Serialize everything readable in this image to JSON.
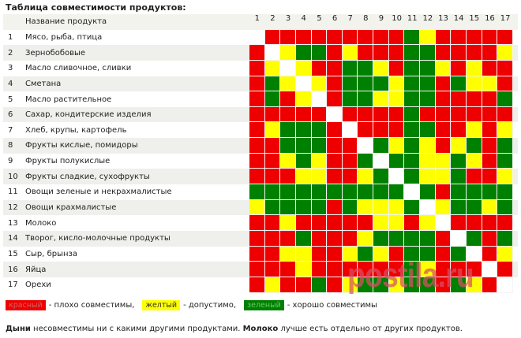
{
  "title": "Таблица совместимости продуктов:",
  "header_label": "Название продукта",
  "colors": {
    "R": "#ee0000",
    "Y": "#ffff00",
    "G": "#008000",
    "W": "#ffffff"
  },
  "products": [
    "Мясо, рыба, птица",
    "Зернобобовые",
    "Масло сливочное, сливки",
    "Сметана",
    "Масло растительное",
    "Сахар, кондитерские изделия",
    "Хлеб, крупы, картофель",
    "Фрукты кислые, помидоры",
    "Фрукты полукислые",
    "Фрукты сладкие, сухофрукты",
    "Овощи зеленые и некрахмалистые",
    "Овощи крахмалистые",
    "Молоко",
    "Творог, кисло-молочные продукты",
    "Сыр, брынза",
    "Яйца",
    "Орехи"
  ],
  "grid": [
    "WRRRRRRRRRGYRRRRR",
    "RWYGGRYRRRGGRRRRY",
    "RYWYRRGGYRGGYRYRR",
    "RGYWYRGGGYGGRGYYR",
    "RGRYWRGGYYGGRRRRG",
    "RRRRRWRRRRGRRRRRR",
    "RYGGGRWRRRGGRRYRY",
    "RRGGGRRWGYGYRYGRG",
    "RRYGYRRGWGGYYGYRG",
    "RRRYYRRYGWGYYGRRY",
    "GGGGGGGGGGWGRGGGG",
    "YGGGGRGYYYGWYGGYG",
    "RRYRRRRRYYRYWRRRR",
    "RRRGRRRYGGGGRWGRG",
    "RRYYRRYGYRGGRGWRY",
    "RRRYRRRRRRGYRRRWR",
    "RYRRGRYGGYGGRGYRW"
  ],
  "legend": [
    {
      "key": "R",
      "label": "красный",
      "desc": "- плохо совместимы,"
    },
    {
      "key": "Y",
      "label": "желтый",
      "desc": "- допустимо,"
    },
    {
      "key": "G",
      "label": "зеленый",
      "desc": "- хорошо совместимы"
    }
  ],
  "note": {
    "b1": "Дыни",
    "t1": " несовместимы ни с какими другими продуктами. ",
    "b2": "Молоко",
    "t2": " лучше есть отдельно от других продуктов."
  },
  "watermark": "postila.ru"
}
